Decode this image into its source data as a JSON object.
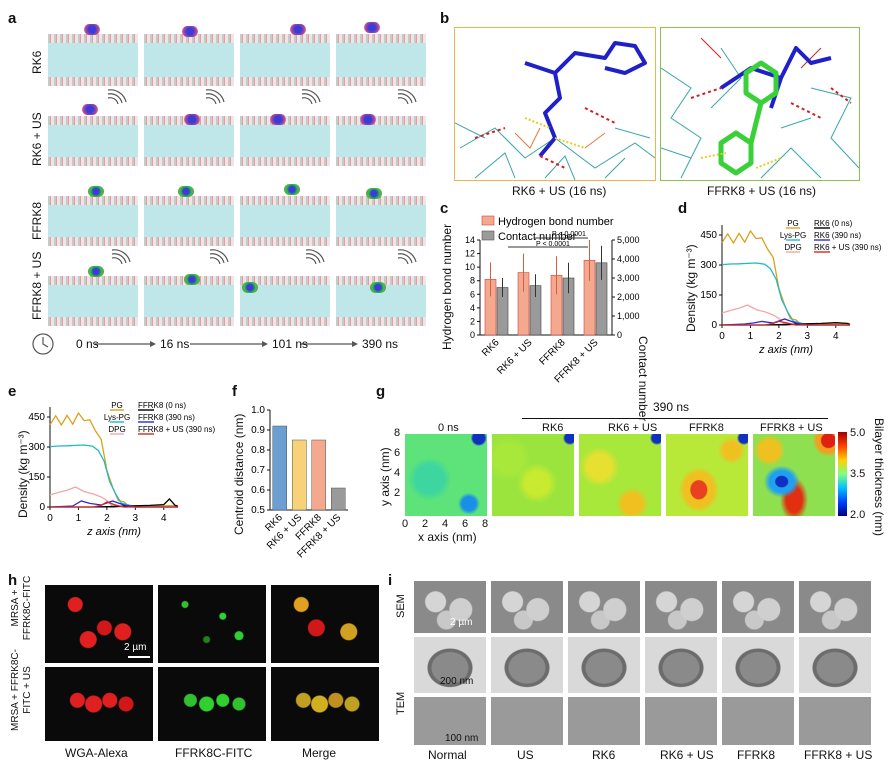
{
  "panels": {
    "a": "a",
    "b": "b",
    "c": "c",
    "d": "d",
    "e": "e",
    "f": "f",
    "g": "g",
    "h": "h",
    "i": "i"
  },
  "panel_a": {
    "rows": [
      "RK6",
      "RK6 + US",
      "FFRK8",
      "FFRK8 + US"
    ],
    "times": [
      "0 ns",
      "16 ns",
      "101 ns",
      "390 ns"
    ]
  },
  "panel_b": {
    "left_caption": "RK6 + US (16 ns)",
    "right_caption": "FFRK8 + US (16 ns)"
  },
  "panel_c": {
    "legend": [
      "Hydrogen bond number",
      "Contact number"
    ],
    "p1": "P < 0.0001",
    "p2": "P < 0.0001",
    "ylabel_left": "Hydrogen bond number",
    "ylabel_right": "Contact number",
    "left_ticks": [
      "0",
      "2",
      "4",
      "6",
      "8",
      "10",
      "12",
      "14"
    ],
    "right_ticks": [
      "0",
      "1,000",
      "2,000",
      "3,000",
      "4,000",
      "5,000"
    ],
    "categories": [
      "RK6",
      "RK6 + US",
      "FFRK8",
      "FFRK8 + US"
    ]
  },
  "panel_d": {
    "legend": [
      "PG",
      "Lys-PG",
      "DPG",
      "RK6 (0 ns)",
      "RK6 (390 ns)",
      "RK6 + US (390 ns)"
    ],
    "ylabel": "Density (kg m⁻³)",
    "xlabel": "z axis (nm)",
    "yticks": [
      "0",
      "150",
      "300",
      "450"
    ],
    "xticks": [
      "0",
      "1",
      "2",
      "3",
      "4"
    ]
  },
  "panel_e": {
    "legend": [
      "PG",
      "Lys-PG",
      "DPG",
      "FFRK8 (0 ns)",
      "FFRK8 (390 ns)",
      "FFRK8 + US (390 ns)"
    ],
    "ylabel": "Density (kg m⁻³)",
    "xlabel": "z axis (nm)",
    "yticks": [
      "0",
      "150",
      "300",
      "450"
    ],
    "xticks": [
      "0",
      "1",
      "2",
      "3",
      "4"
    ]
  },
  "panel_f": {
    "ylabel": "Centroid distance (nm)",
    "yticks": [
      "0.5",
      "0.6",
      "0.7",
      "0.8",
      "0.9",
      "1.0"
    ],
    "categories": [
      "RK6",
      "RK6 + US",
      "FFRK8",
      "FFRK8 + US"
    ]
  },
  "panel_g": {
    "time_top": "390 ns",
    "titles": [
      "0 ns",
      "RK6",
      "RK6 + US",
      "FFRK8",
      "FFRK8 + US"
    ],
    "ylabel": "y axis (nm)",
    "xlabel": "x axis (nm)",
    "yticks": [
      "2",
      "4",
      "6",
      "8"
    ],
    "xticks": [
      "0",
      "2",
      "4",
      "6",
      "8"
    ],
    "cbar_label": "Bilayer thickness (nm)",
    "cbar_ticks": [
      "5.0",
      "3.5",
      "2.0"
    ]
  },
  "panel_h": {
    "rows": [
      "MRSA + FFRK8C-FITC",
      "MRSA + FFRK8C-FITC + US"
    ],
    "cols": [
      "WGA-Alexa",
      "FFRK8C-FITC",
      "Merge"
    ],
    "scale": "2 µm"
  },
  "panel_i": {
    "rows": [
      "SEM",
      "TEM"
    ],
    "cols": [
      "Normal",
      "US",
      "RK6",
      "RK6 + US",
      "FFRK8",
      "FFRK8 + US"
    ],
    "scale_sem": "2 µm",
    "scale_tem": "200 nm",
    "scale_zoom": "100 nm"
  },
  "chart_data": [
    {
      "type": "bar",
      "title": "",
      "categories": [
        "RK6",
        "RK6 + US",
        "FFRK8",
        "FFRK8 + US"
      ],
      "series": [
        {
          "name": "Hydrogen bond number",
          "axis": "left",
          "values": [
            8.2,
            9.2,
            8.8,
            11.0
          ],
          "errors": [
            2.5,
            2.8,
            2.8,
            3.0
          ]
        },
        {
          "name": "Contact number",
          "axis": "right",
          "values": [
            2500,
            2600,
            3000,
            3800
          ],
          "errors": [
            500,
            600,
            800,
            900
          ]
        }
      ],
      "ylim_left": [
        0,
        14
      ],
      "ylim_right": [
        0,
        5000
      ],
      "color_hb": "#f4a98e",
      "color_contact": "#9a9a9a"
    },
    {
      "type": "line",
      "title": "",
      "xlim": [
        0,
        4.5
      ],
      "ylim": [
        0,
        500
      ],
      "series": [
        {
          "name": "PG",
          "color": "#d9a21b"
        },
        {
          "name": "Lys-PG",
          "color": "#22b8c4"
        },
        {
          "name": "DPG",
          "color": "#f4a6a6"
        },
        {
          "name": "RK6 (0 ns)",
          "color": "#000000"
        },
        {
          "name": "RK6 (390 ns)",
          "color": "#2a2ad8"
        },
        {
          "name": "RK6 + US (390 ns)",
          "color": "#d9281f"
        }
      ]
    },
    {
      "type": "line",
      "title": "",
      "xlim": [
        0,
        4.5
      ],
      "ylim": [
        0,
        500
      ],
      "series": [
        {
          "name": "PG",
          "color": "#d9a21b"
        },
        {
          "name": "Lys-PG",
          "color": "#22b8c4"
        },
        {
          "name": "DPG",
          "color": "#f4a6a6"
        },
        {
          "name": "FFRK8 (0 ns)",
          "color": "#000000"
        },
        {
          "name": "FFRK8 (390 ns)",
          "color": "#2a2ad8"
        },
        {
          "name": "FFRK8 + US (390 ns)",
          "color": "#d9281f"
        }
      ]
    },
    {
      "type": "bar",
      "title": "",
      "categories": [
        "RK6",
        "RK6 + US",
        "FFRK8",
        "FFRK8 + US"
      ],
      "values": [
        0.92,
        0.85,
        0.85,
        0.61
      ],
      "colors": [
        "#6b9ed1",
        "#f7d279",
        "#f4a98e",
        "#9a9a9a"
      ],
      "ylim": [
        0.5,
        1.0
      ]
    }
  ]
}
